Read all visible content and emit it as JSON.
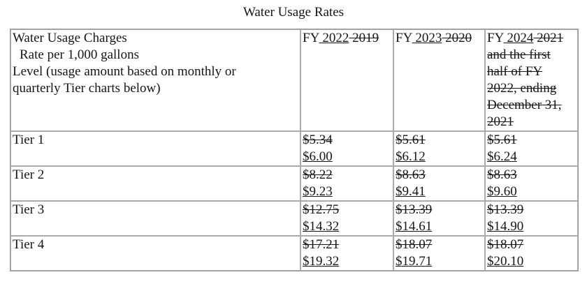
{
  "title": "Water Usage Rates",
  "table": {
    "header": {
      "description": {
        "line1": "Water Usage Charges",
        "line2": "Rate per 1,000 gallons",
        "line3": "Level (usage amount based on monthly or",
        "line4": "quarterly Tier charts below)"
      },
      "fy_columns": [
        {
          "prefix": "FY",
          "inserted": " 2022",
          "deleted": " 2019"
        },
        {
          "prefix": "FY",
          "inserted": " 2023",
          "deleted": " 2020"
        },
        {
          "prefix": "FY",
          "inserted": " 2024",
          "deleted_first": " 2021",
          "deleted_wrap": [
            "and the first",
            "half of FY",
            "2022, ending",
            "December 31,",
            "2021"
          ]
        }
      ]
    },
    "rows": [
      {
        "label": "Tier 1",
        "cells": [
          {
            "old": "$5.34",
            "new": "$6.00"
          },
          {
            "old": "$5.61",
            "new": "$6.12"
          },
          {
            "old": "$5.61",
            "new": "$6.24"
          }
        ]
      },
      {
        "label": "Tier 2",
        "cells": [
          {
            "old": "$8.22",
            "new": "$9.23"
          },
          {
            "old": "$8.63",
            "new": "$9.41"
          },
          {
            "old": "$8.63",
            "new": "$9.60"
          }
        ]
      },
      {
        "label": "Tier 3",
        "cells": [
          {
            "old": "$12.75",
            "new": "$14.32"
          },
          {
            "old": "$13.39",
            "new": "$14.61"
          },
          {
            "old": "$13.39",
            "new": "$14.90"
          }
        ]
      },
      {
        "label": "Tier 4",
        "cells": [
          {
            "old": "$17.21",
            "new": "$19.32"
          },
          {
            "old": "$18.07",
            "new": "$19.71"
          },
          {
            "old": "$18.07",
            "new": "$20.10"
          }
        ]
      }
    ]
  },
  "colors": {
    "text": "#161616",
    "border_outer": "#9a9a9a",
    "border_inner": "#ababab",
    "background": "#ffffff"
  }
}
